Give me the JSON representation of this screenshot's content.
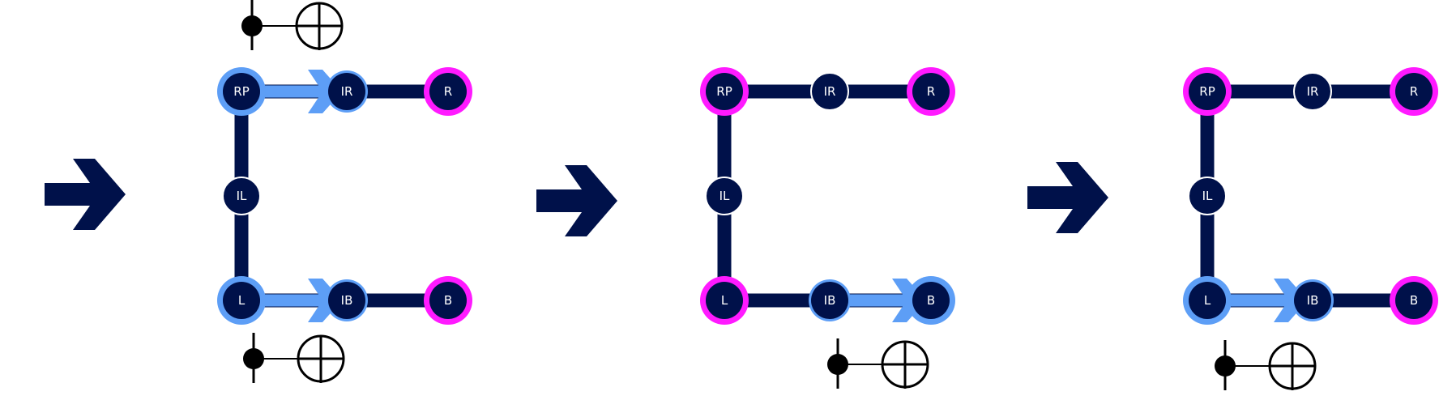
{
  "colors": {
    "navy": "#00114a",
    "blue_highlight": "#5d9ef6",
    "magenta": "#ff1aff",
    "gate": "#000000"
  },
  "transition_arrow_count": 3,
  "panels": [
    {
      "nodes": [
        {
          "id": "RP",
          "label": "RP",
          "ring": "blue"
        },
        {
          "id": "IR",
          "label": "IR",
          "ring": "light"
        },
        {
          "id": "R",
          "label": "R",
          "ring": "magenta"
        },
        {
          "id": "IL",
          "label": "IL",
          "ring": "none"
        },
        {
          "id": "L",
          "label": "L",
          "ring": "blue"
        },
        {
          "id": "IB",
          "label": "IB",
          "ring": "light"
        },
        {
          "id": "B",
          "label": "B",
          "ring": "magenta"
        }
      ],
      "swaps": [
        {
          "from": "RP",
          "to": "IR"
        },
        {
          "from": "L",
          "to": "IB"
        }
      ],
      "gates": [
        "top",
        "bottom"
      ]
    },
    {
      "nodes": [
        {
          "id": "RP",
          "label": "RP",
          "ring": "magenta"
        },
        {
          "id": "IR",
          "label": "IR",
          "ring": "none"
        },
        {
          "id": "R",
          "label": "R",
          "ring": "magenta"
        },
        {
          "id": "IL",
          "label": "IL",
          "ring": "none"
        },
        {
          "id": "L",
          "label": "L",
          "ring": "magenta"
        },
        {
          "id": "IB",
          "label": "IB",
          "ring": "light"
        },
        {
          "id": "B",
          "label": "B",
          "ring": "blue"
        }
      ],
      "swaps": [
        {
          "from": "IB",
          "to": "B"
        }
      ],
      "gates": [
        "bottom-right"
      ]
    },
    {
      "nodes": [
        {
          "id": "RP",
          "label": "RP",
          "ring": "magenta"
        },
        {
          "id": "IR",
          "label": "IR",
          "ring": "none"
        },
        {
          "id": "R",
          "label": "R",
          "ring": "magenta"
        },
        {
          "id": "IL",
          "label": "IL",
          "ring": "none"
        },
        {
          "id": "L",
          "label": "L",
          "ring": "blue"
        },
        {
          "id": "IB",
          "label": "IB",
          "ring": "light"
        },
        {
          "id": "B",
          "label": "B",
          "ring": "magenta"
        }
      ],
      "swaps": [
        {
          "from": "L",
          "to": "IB"
        }
      ],
      "gates": [
        "bottom"
      ]
    }
  ]
}
